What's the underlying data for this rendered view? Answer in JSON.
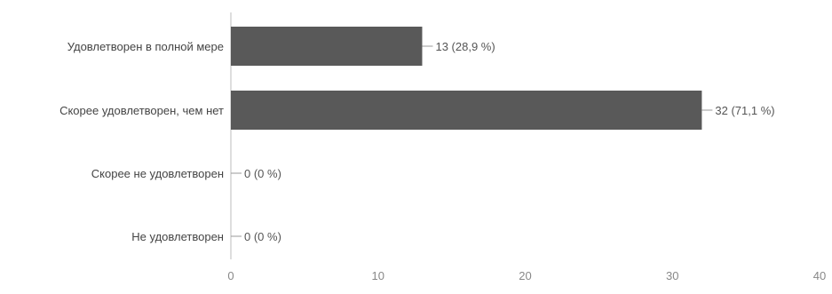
{
  "chart_data": {
    "type": "bar",
    "orientation": "horizontal",
    "categories": [
      "Удовлетворен в полной мере",
      "Скорее удовлетворен, чем нет",
      "Скорее не удовлетворен",
      "Не удовлетворен"
    ],
    "values": [
      13,
      32,
      0,
      0
    ],
    "value_labels": [
      "13 (28,9 %)",
      "32 (71,1 %)",
      "0 (0 %)",
      "0 (0 %)"
    ],
    "x_ticks": [
      "0",
      "10",
      "20",
      "30",
      "40"
    ],
    "xlim": [
      0,
      40
    ],
    "grid": false,
    "legend": "none",
    "colors": {
      "bar": "#595959",
      "axis": "#c8c8c8",
      "category_text": "#444444",
      "value_text": "#555555",
      "tick_text": "#888888",
      "leader": "#9a9a9a"
    }
  }
}
